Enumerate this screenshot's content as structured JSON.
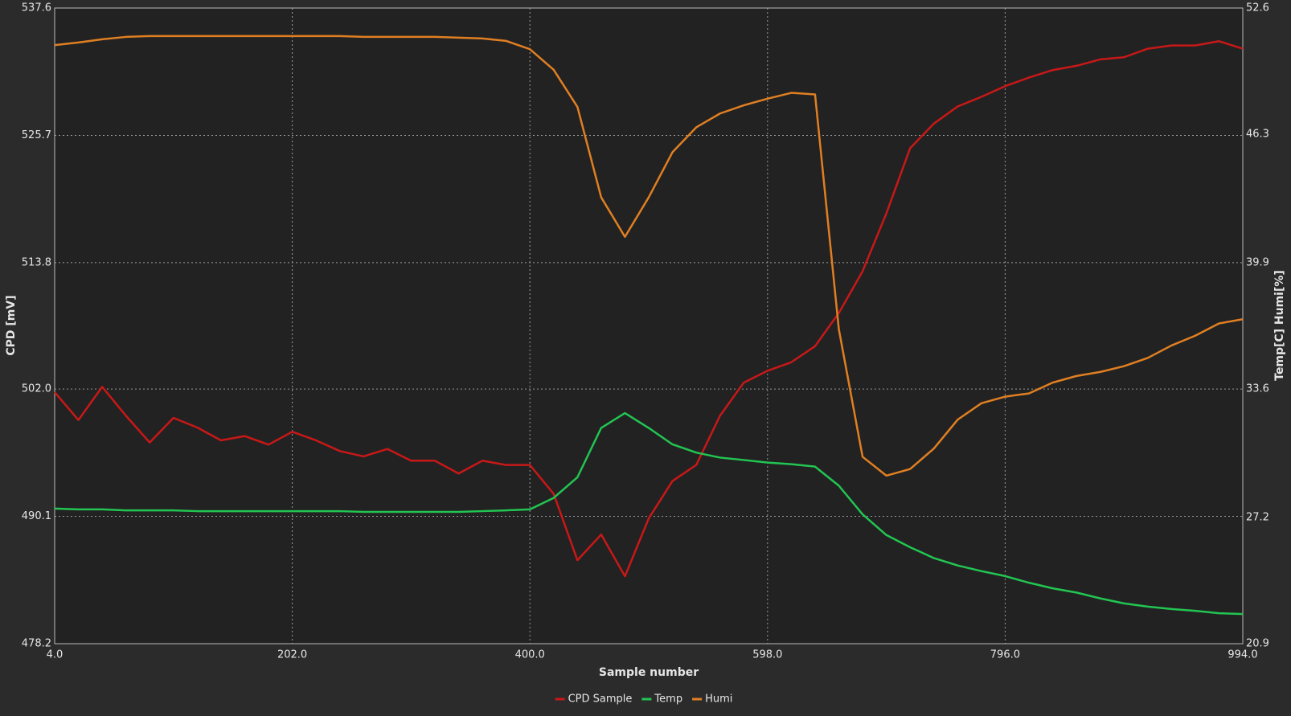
{
  "chart_data": {
    "type": "line",
    "xlabel": "Sample number",
    "ylabel": "CPD [mV]",
    "y2label": "Temp[C] Humi[%]",
    "x": [
      4,
      23.8,
      43.6,
      63.4,
      83.2,
      103,
      122.8,
      142.6,
      162.4,
      182.2,
      202,
      221.8,
      241.6,
      261.4,
      281.2,
      301,
      320.8,
      340.6,
      360.4,
      380.2,
      400,
      419.8,
      439.6,
      459.4,
      479.2,
      499,
      518.8,
      538.6,
      558.4,
      578.2,
      598,
      617.8,
      637.6,
      657.4,
      677.2,
      697,
      716.8,
      736.6,
      756.4,
      776.2,
      796,
      815.8,
      835.6,
      855.4,
      875.2,
      895,
      914.8,
      934.6,
      954.4,
      974.2,
      994
    ],
    "series": [
      {
        "name": "CPD Sample",
        "color": "#c81818",
        "values": [
          501.7,
          499.1,
          502.2,
          499.5,
          497.0,
          499.3,
          498.4,
          497.2,
          497.6,
          496.8,
          498.0,
          497.2,
          496.2,
          495.7,
          496.4,
          495.3,
          495.3,
          494.1,
          495.3,
          494.9,
          494.9,
          492.2,
          486.0,
          488.4,
          484.5,
          489.9,
          493.4,
          494.9,
          499.5,
          502.6,
          503.7,
          504.5,
          506.0,
          509.1,
          513.0,
          518.4,
          524.5,
          526.8,
          528.4,
          529.3,
          530.3,
          531.1,
          531.8,
          532.2,
          532.8,
          533.0,
          533.8,
          534.1,
          534.1,
          534.5,
          533.8
        ]
      },
      {
        "name": "Temp",
        "color": "#22c552",
        "axis": "y2",
        "values": [
          27.64,
          27.6,
          27.6,
          27.55,
          27.55,
          27.55,
          27.51,
          27.51,
          27.51,
          27.51,
          27.51,
          27.51,
          27.51,
          27.47,
          27.47,
          27.47,
          27.47,
          27.47,
          27.51,
          27.55,
          27.6,
          28.17,
          29.2,
          31.66,
          32.4,
          31.66,
          30.84,
          30.43,
          30.18,
          30.06,
          29.93,
          29.85,
          29.73,
          28.78,
          27.35,
          26.32,
          25.71,
          25.17,
          24.8,
          24.52,
          24.27,
          23.94,
          23.66,
          23.45,
          23.16,
          22.91,
          22.75,
          22.63,
          22.54,
          22.42,
          22.38
        ]
      },
      {
        "name": "Humi",
        "color": "#e07f22",
        "axis": "y2",
        "values": [
          50.75,
          50.88,
          51.04,
          51.16,
          51.2,
          51.2,
          51.2,
          51.2,
          51.2,
          51.2,
          51.2,
          51.2,
          51.2,
          51.16,
          51.16,
          51.16,
          51.16,
          51.12,
          51.08,
          50.96,
          50.55,
          49.52,
          47.67,
          43.16,
          41.19,
          43.16,
          45.41,
          46.65,
          47.34,
          47.75,
          48.08,
          48.37,
          48.29,
          36.59,
          30.22,
          29.28,
          29.61,
          30.63,
          32.07,
          32.89,
          33.22,
          33.38,
          33.92,
          34.25,
          34.45,
          34.74,
          35.15,
          35.77,
          36.26,
          36.87,
          37.08
        ]
      }
    ],
    "xlim": [
      4,
      994
    ],
    "xticks": [
      {
        "value": 4,
        "label": "4.0"
      },
      {
        "value": 202,
        "label": "202.0"
      },
      {
        "value": 400,
        "label": "400.0"
      },
      {
        "value": 598,
        "label": "598.0"
      },
      {
        "value": 796,
        "label": "796.0"
      },
      {
        "value": 994,
        "label": "994.0"
      }
    ],
    "ylim": [
      478.2,
      537.6
    ],
    "yticks": [
      478.2,
      490.1,
      {
        "value": 502,
        "label": "502.0"
      },
      513.8,
      525.7,
      537.6
    ],
    "y2lim": [
      20.9,
      52.6
    ],
    "y2ticks": [
      20.9,
      27.2,
      33.6,
      39.9,
      46.3,
      52.6
    ],
    "grid": true,
    "legend": "bottom"
  }
}
